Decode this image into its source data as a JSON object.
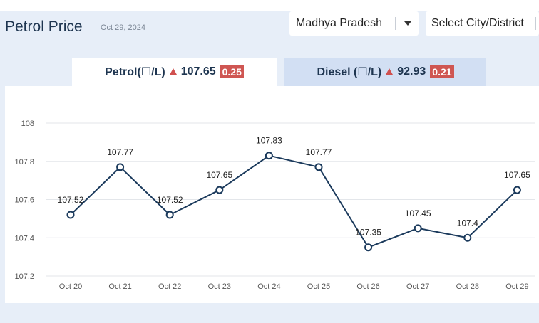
{
  "header": {
    "title": "Petrol Price",
    "date": "Oct 29, 2024"
  },
  "filters": {
    "state": "Madhya Pradesh",
    "city": "Select City/District"
  },
  "tabs": {
    "petrol": {
      "label": "Petrol(☐/L)",
      "price": "107.65",
      "change": "0.25"
    },
    "diesel": {
      "label": "Diesel (☐/L)",
      "price": "92.93",
      "change": "0.21"
    }
  },
  "colors": {
    "line": "#1b3a5c",
    "badge": "#cf5652",
    "up_arrow": "#d0504f"
  },
  "chart_data": {
    "type": "line",
    "title": "",
    "xlabel": "",
    "ylabel": "",
    "categories": [
      "Oct 20",
      "Oct 21",
      "Oct 22",
      "Oct 23",
      "Oct 24",
      "Oct 25",
      "Oct 26",
      "Oct 27",
      "Oct 28",
      "Oct 29"
    ],
    "values": [
      107.52,
      107.77,
      107.52,
      107.65,
      107.83,
      107.77,
      107.35,
      107.45,
      107.4,
      107.65
    ],
    "y_ticks": [
      "108",
      "107.8",
      "107.6",
      "107.4",
      "107.2"
    ],
    "ylim": [
      107.2,
      108
    ],
    "grid": true,
    "data_labels": true
  }
}
